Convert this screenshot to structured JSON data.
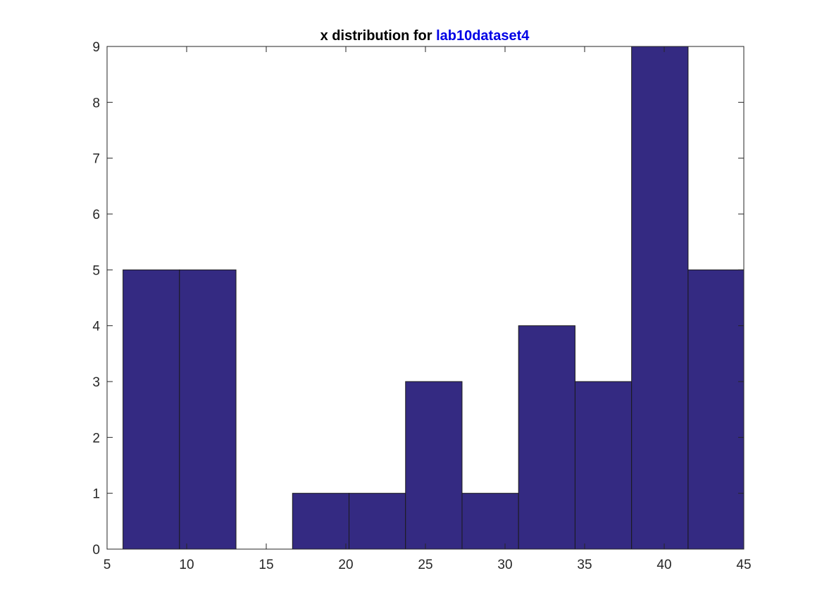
{
  "chart_data": {
    "type": "bar",
    "title_prefix": "x distribution for ",
    "title_highlight": "lab10dataset4",
    "xlabel": "",
    "ylabel": "",
    "xlim": [
      5,
      45
    ],
    "ylim": [
      0,
      9
    ],
    "xticks": [
      5,
      10,
      15,
      20,
      25,
      30,
      35,
      40,
      45
    ],
    "yticks": [
      0,
      1,
      2,
      3,
      4,
      5,
      6,
      7,
      8,
      9
    ],
    "bin_edges": [
      6.0,
      9.55,
      13.1,
      16.65,
      20.2,
      23.75,
      27.3,
      30.85,
      34.4,
      37.95,
      41.5,
      45.05
    ],
    "values": [
      5,
      5,
      0,
      1,
      1,
      3,
      1,
      4,
      3,
      9,
      5
    ],
    "bar_color": "#342a82",
    "edge_color": "#1a1a1a",
    "title_highlight_color": "#0000e6",
    "grid": false
  }
}
